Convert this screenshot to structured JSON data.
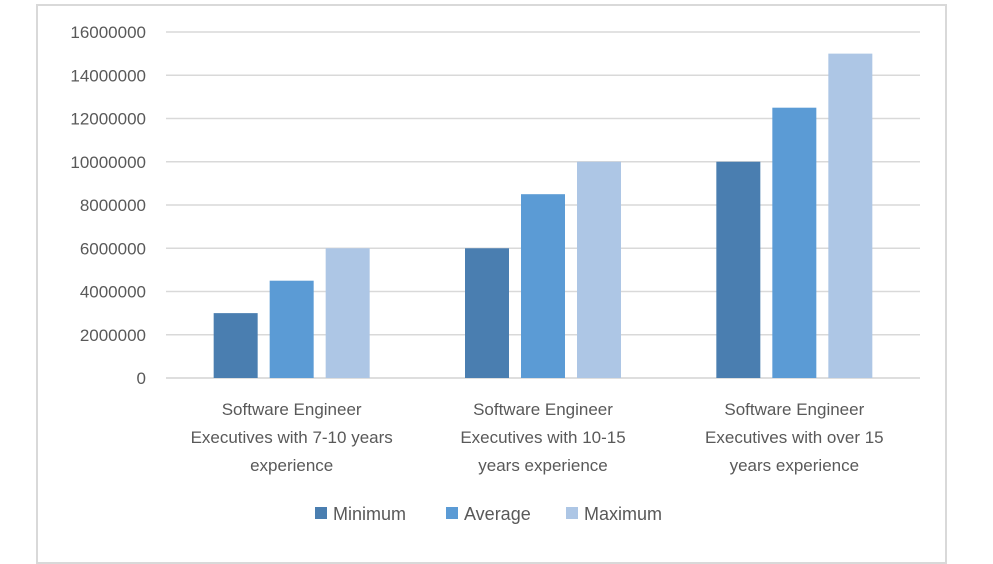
{
  "chart_data": {
    "type": "bar",
    "title": "",
    "xlabel": "",
    "ylabel": "",
    "ylim": [
      0,
      16000000
    ],
    "yticks": [
      0,
      2000000,
      4000000,
      6000000,
      8000000,
      10000000,
      12000000,
      14000000,
      16000000
    ],
    "ytick_labels": [
      "0",
      "2000000",
      "4000000",
      "6000000",
      "8000000",
      "10000000",
      "12000000",
      "14000000",
      "16000000"
    ],
    "grid": true,
    "legend_position": "bottom",
    "categories": [
      [
        "Software Engineer",
        "Executives with 7-10 years",
        "experience"
      ],
      [
        "Software Engineer",
        "Executives with 10-15",
        "years experience"
      ],
      [
        "Software Engineer",
        "Executives with over 15",
        "years experience"
      ]
    ],
    "category_names": [
      "Software Engineer Executives with 7-10 years experience",
      "Software Engineer Executives with 10-15 years experience",
      "Software Engineer Executives with over 15 years experience"
    ],
    "series": [
      {
        "name": "Minimum",
        "color": "#4a7eb0",
        "values": [
          3000000,
          6000000,
          10000000
        ]
      },
      {
        "name": "Average",
        "color": "#5b9bd5",
        "values": [
          4500000,
          8500000,
          12500000
        ]
      },
      {
        "name": "Maximum",
        "color": "#adc6e5",
        "values": [
          6000000,
          10000000,
          15000000
        ]
      }
    ]
  }
}
